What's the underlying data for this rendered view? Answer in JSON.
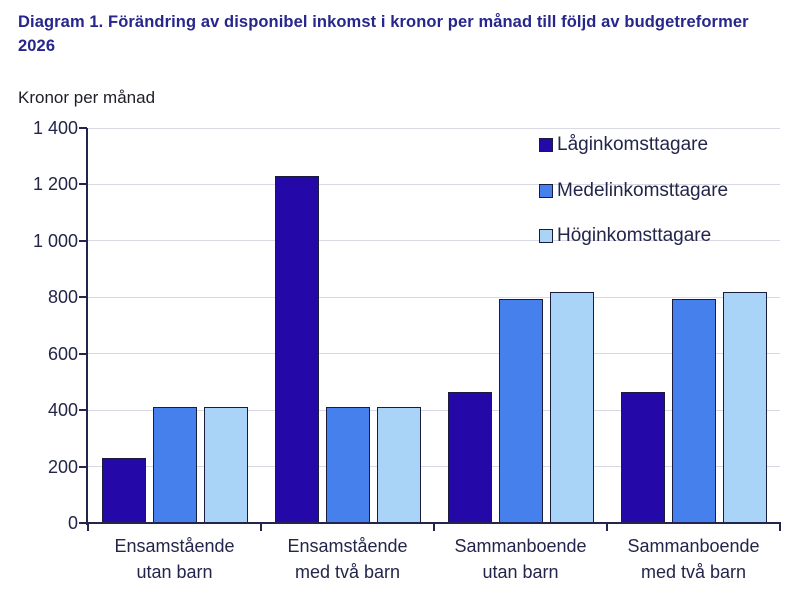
{
  "header": {
    "title_line1": "Diagram 1. Förändring av disponibel inkomst i kronor per månad till följd av budgetreformer",
    "title_line2": "2026"
  },
  "y_axis_unit_label": "Kronor per månad",
  "colors": {
    "background": "#FFFFFF",
    "title_text": "#26268C",
    "unit_label_text": "#1E1E28",
    "axis_line": "#23254A",
    "grid_line": "#D9D9E3",
    "tick_text": "#23254A",
    "category_text": "#23254A",
    "legend_text": "#23254A",
    "bar_border": "#1A1C3E"
  },
  "chart_data": {
    "type": "bar",
    "title": "Diagram 1. Förändring av disponibel inkomst i kronor per månad till följd av budgetreformer 2026",
    "ylabel": "Kronor per månad",
    "xlabel": "",
    "categories": [
      "Ensamstående utan barn",
      "Ensamstående med två barn",
      "Sammanboende utan barn",
      "Sammanboende med två barn"
    ],
    "category_lines": [
      [
        "Ensamstående",
        "utan barn"
      ],
      [
        "Ensamstående",
        "med två barn"
      ],
      [
        "Sammanboende",
        "utan barn"
      ],
      [
        "Sammanboende",
        "med två barn"
      ]
    ],
    "series": [
      {
        "name": "Låginkomsttagare",
        "color": "#2408A8",
        "values": [
          230,
          1230,
          465,
          465
        ]
      },
      {
        "name": "Medelinkomsttagare",
        "color": "#4580EC",
        "values": [
          410,
          410,
          795,
          795
        ]
      },
      {
        "name": "Höginkomsttagare",
        "color": "#A9D4F7",
        "values": [
          410,
          410,
          820,
          820
        ]
      }
    ],
    "ylim": [
      0,
      1400
    ],
    "ytick_step": 200,
    "ytick_labels": [
      "0",
      "200",
      "400",
      "600",
      "800",
      "1 000",
      "1 200",
      "1 400"
    ],
    "grid": true,
    "legend_position": "top-right"
  }
}
